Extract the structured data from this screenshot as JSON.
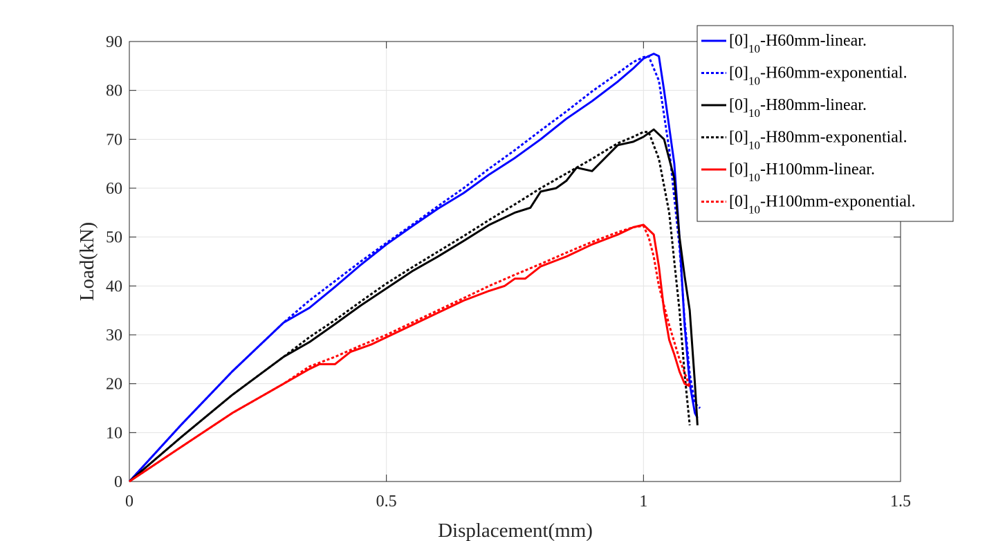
{
  "chart_data": {
    "type": "line",
    "xlabel": "Displacement(mm)",
    "ylabel": "Load(kN)",
    "xlim": [
      0,
      1.5
    ],
    "ylim": [
      0,
      90
    ],
    "xticks": [
      0,
      0.5,
      1,
      1.5
    ],
    "xtick_labels": [
      "0",
      "0.5",
      "1",
      "1.5"
    ],
    "yticks": [
      0,
      10,
      20,
      30,
      40,
      50,
      60,
      70,
      80,
      90
    ],
    "ytick_labels": [
      "0",
      "10",
      "20",
      "30",
      "40",
      "50",
      "60",
      "70",
      "80",
      "90"
    ],
    "grid": true,
    "legend_position": "top-right",
    "series": [
      {
        "name": "[0]10-H60mm-linear.",
        "legend_main": "[0]",
        "legend_sub": "10",
        "legend_rest": "-H60mm-linear.",
        "color": "#0000ff",
        "style": "solid",
        "x": [
          0,
          0.1,
          0.2,
          0.3,
          0.35,
          0.4,
          0.45,
          0.5,
          0.55,
          0.6,
          0.65,
          0.7,
          0.75,
          0.8,
          0.85,
          0.9,
          0.95,
          0.98,
          1.0,
          1.02,
          1.03,
          1.04,
          1.06,
          1.07,
          1.08,
          1.09,
          1.1,
          1.105
        ],
        "y": [
          0,
          11.5,
          22.5,
          32.5,
          35.5,
          39.8,
          44.3,
          48.5,
          52.2,
          55.8,
          59.0,
          62.8,
          66.2,
          70.0,
          74.2,
          77.8,
          81.8,
          84.5,
          86.5,
          87.5,
          87.0,
          80.0,
          65.0,
          50.0,
          32.0,
          20.0,
          14.0,
          13.0
        ]
      },
      {
        "name": "[0]10-H60mm-exponential.",
        "legend_main": "[0]",
        "legend_sub": "10",
        "legend_rest": "-H60mm-exponential.",
        "color": "#0000ff",
        "style": "dotted",
        "x": [
          0,
          0.1,
          0.2,
          0.3,
          0.35,
          0.4,
          0.45,
          0.5,
          0.55,
          0.6,
          0.65,
          0.7,
          0.75,
          0.8,
          0.85,
          0.9,
          0.95,
          0.98,
          1.0,
          1.01,
          1.03,
          1.05,
          1.07,
          1.08,
          1.09,
          1.1,
          1.11
        ],
        "y": [
          0,
          11.5,
          22.5,
          32.5,
          37.0,
          41.0,
          45.0,
          48.8,
          52.5,
          56.3,
          60.0,
          64.0,
          67.8,
          71.8,
          75.7,
          79.8,
          83.5,
          85.8,
          86.8,
          87.0,
          82.0,
          68.0,
          48.0,
          33.0,
          22.0,
          16.0,
          15.0
        ]
      },
      {
        "name": "[0]10-H80mm-linear.",
        "legend_main": "[0]",
        "legend_sub": "10",
        "legend_rest": "-H80mm-linear.",
        "color": "#000000",
        "style": "solid",
        "x": [
          0,
          0.1,
          0.2,
          0.3,
          0.35,
          0.4,
          0.45,
          0.5,
          0.55,
          0.6,
          0.65,
          0.7,
          0.75,
          0.78,
          0.8,
          0.83,
          0.85,
          0.87,
          0.9,
          0.95,
          0.98,
          1.0,
          1.02,
          1.04,
          1.06,
          1.07,
          1.08,
          1.09,
          1.1,
          1.105
        ],
        "y": [
          0,
          9.0,
          17.7,
          25.5,
          28.5,
          32.2,
          36.0,
          39.5,
          43.0,
          46.0,
          49.2,
          52.5,
          55.0,
          56.0,
          59.3,
          60.0,
          61.5,
          64.2,
          63.5,
          68.8,
          69.5,
          70.5,
          72.0,
          70.0,
          62.0,
          50.0,
          42.0,
          35.0,
          20.0,
          11.5
        ]
      },
      {
        "name": "[0]10-H80mm-exponential.",
        "legend_main": "[0]",
        "legend_sub": "10",
        "legend_rest": "-H80mm-exponential.",
        "color": "#000000",
        "style": "dotted",
        "x": [
          0,
          0.1,
          0.2,
          0.3,
          0.35,
          0.4,
          0.45,
          0.5,
          0.55,
          0.6,
          0.65,
          0.7,
          0.75,
          0.8,
          0.85,
          0.9,
          0.95,
          0.98,
          1.0,
          1.01,
          1.03,
          1.05,
          1.06,
          1.07,
          1.08,
          1.09
        ],
        "y": [
          0,
          9.0,
          17.7,
          25.5,
          29.5,
          33.0,
          36.8,
          40.5,
          43.8,
          47.0,
          50.2,
          53.5,
          56.7,
          60.0,
          63.0,
          66.0,
          69.2,
          70.5,
          71.5,
          71.5,
          66.0,
          55.0,
          45.0,
          35.0,
          22.0,
          11.5
        ]
      },
      {
        "name": "[0]10-H100mm-linear.",
        "legend_main": "[0]",
        "legend_sub": "10",
        "legend_rest": "-H100mm-linear.",
        "color": "#ff0000",
        "style": "solid",
        "x": [
          0,
          0.1,
          0.2,
          0.3,
          0.35,
          0.37,
          0.4,
          0.43,
          0.47,
          0.5,
          0.55,
          0.6,
          0.65,
          0.7,
          0.73,
          0.75,
          0.77,
          0.8,
          0.85,
          0.9,
          0.95,
          0.98,
          1.0,
          1.02,
          1.03,
          1.04,
          1.05,
          1.06,
          1.07,
          1.08,
          1.09
        ],
        "y": [
          0,
          7.0,
          14.0,
          20.0,
          23.0,
          24.0,
          24.0,
          26.5,
          28.0,
          29.5,
          32.0,
          34.5,
          37.0,
          39.0,
          40.0,
          41.5,
          41.5,
          44.0,
          46.0,
          48.5,
          50.5,
          52.0,
          52.5,
          50.5,
          44.0,
          35.0,
          29.0,
          26.0,
          22.5,
          20.0,
          19.5
        ]
      },
      {
        "name": "[0]10-H100mm-exponential.",
        "legend_main": "[0]",
        "legend_sub": "10",
        "legend_rest": "-H100mm-exponential.",
        "color": "#ff0000",
        "style": "dotted",
        "x": [
          0,
          0.1,
          0.2,
          0.3,
          0.35,
          0.4,
          0.45,
          0.5,
          0.55,
          0.6,
          0.65,
          0.7,
          0.75,
          0.8,
          0.85,
          0.9,
          0.95,
          0.98,
          1.0,
          1.01,
          1.02,
          1.03,
          1.05,
          1.07,
          1.09
        ],
        "y": [
          0,
          7.0,
          14.0,
          20.0,
          23.5,
          25.5,
          27.8,
          30.0,
          32.5,
          35.0,
          37.5,
          40.0,
          42.3,
          44.5,
          46.8,
          49.0,
          51.0,
          52.0,
          52.3,
          50.0,
          46.0,
          40.0,
          32.0,
          25.0,
          19.5
        ]
      }
    ]
  }
}
